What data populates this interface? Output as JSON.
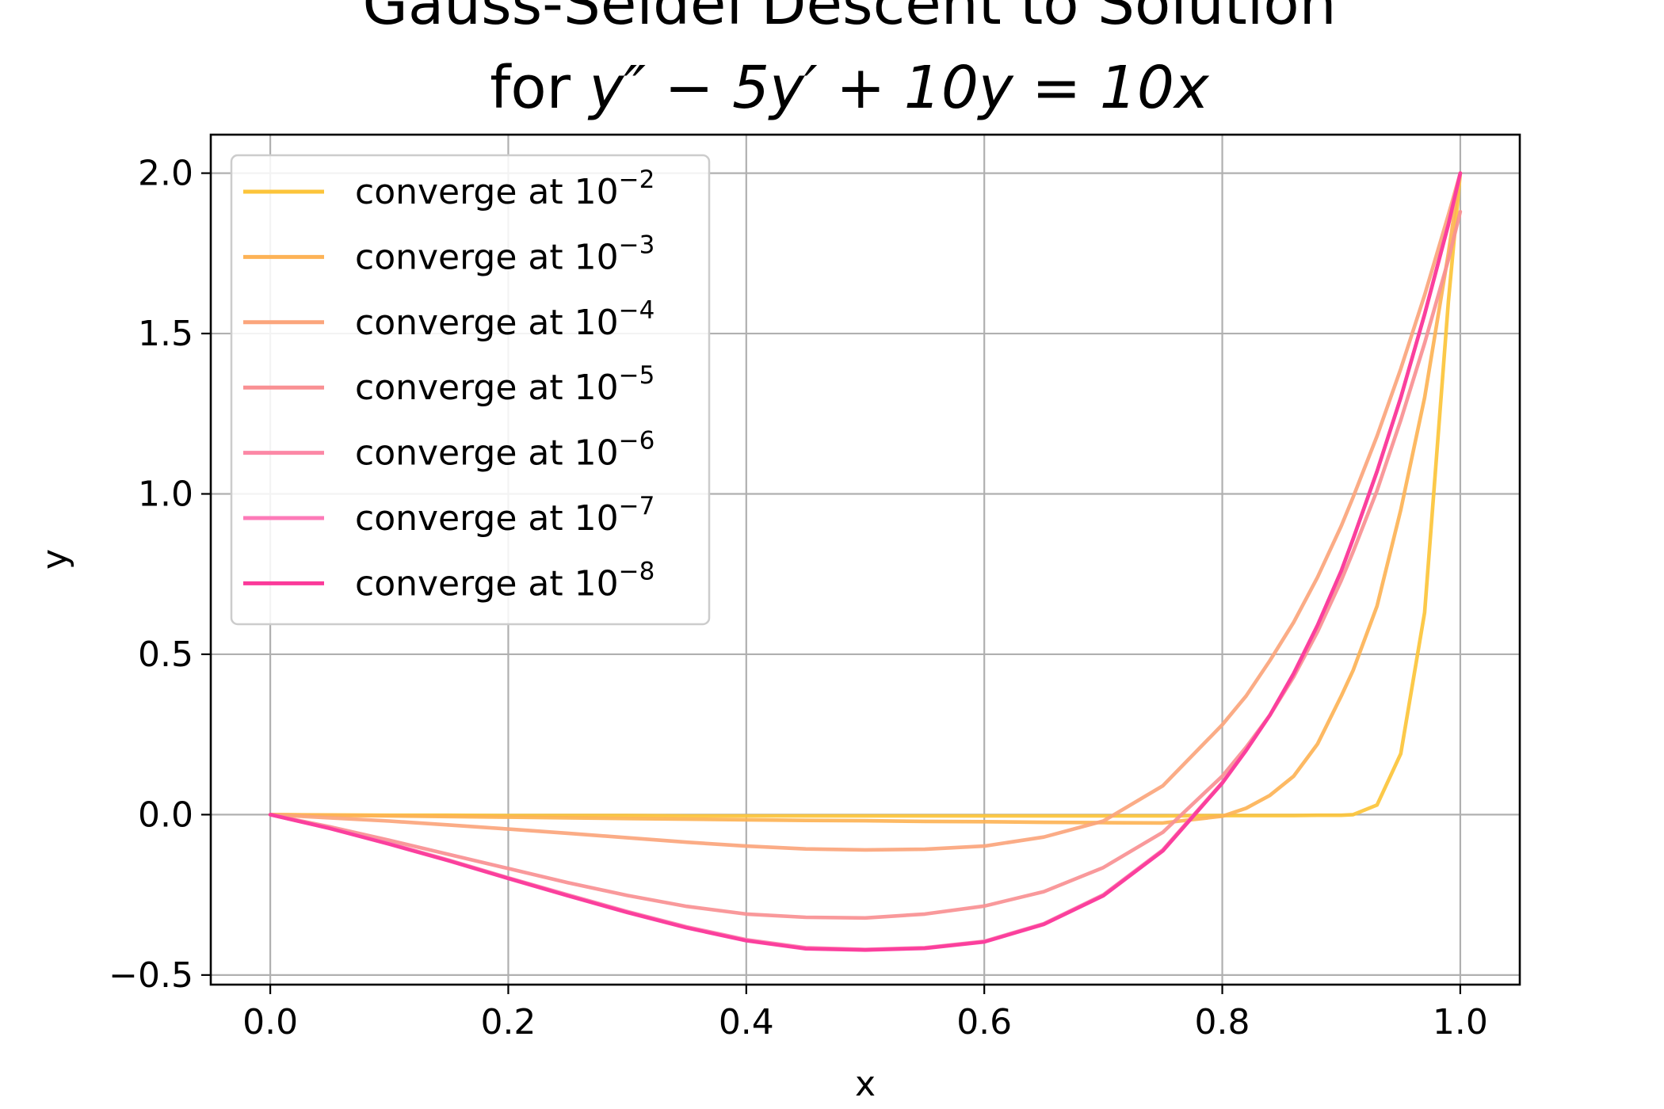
{
  "chart_data": {
    "type": "line",
    "title_line1": "Gauss-Seidel Descent to Solution",
    "title_line2_prefix": "for ",
    "title_line2_eq": "y″ − 5y′ + 10y = 10x",
    "xlabel": "x",
    "ylabel": "y",
    "xlim": [
      -0.05,
      1.05
    ],
    "ylim": [
      -0.53,
      2.12
    ],
    "xticks": [
      0.0,
      0.2,
      0.4,
      0.6,
      0.8,
      1.0
    ],
    "xtick_labels": [
      "0.0",
      "0.2",
      "0.4",
      "0.6",
      "0.8",
      "1.0"
    ],
    "yticks": [
      -0.5,
      0.0,
      0.5,
      1.0,
      1.5,
      2.0
    ],
    "ytick_labels": [
      "−0.5",
      "0.0",
      "0.5",
      "1.0",
      "1.5",
      "2.0"
    ],
    "grid": true,
    "legend_position": "upper-left",
    "x": [
      0.0,
      0.05,
      0.1,
      0.15,
      0.2,
      0.25,
      0.3,
      0.35,
      0.4,
      0.45,
      0.5,
      0.55,
      0.6,
      0.65,
      0.7,
      0.75,
      0.8,
      0.82,
      0.84,
      0.86,
      0.88,
      0.9,
      0.91,
      0.93,
      0.95,
      0.97,
      0.99,
      1.0
    ],
    "series": [
      {
        "name": "converge at 10",
        "exponent": "−2",
        "color": "#fcc43a",
        "values": [
          0.0,
          -0.001,
          -0.002,
          -0.002,
          -0.003,
          -0.003,
          -0.003,
          -0.004,
          -0.004,
          -0.004,
          -0.004,
          -0.004,
          -0.004,
          -0.004,
          -0.004,
          -0.004,
          -0.003,
          -0.003,
          -0.003,
          -0.003,
          -0.002,
          -0.002,
          0.0,
          0.03,
          0.19,
          0.63,
          1.6,
          2.0
        ]
      },
      {
        "name": "converge at 10",
        "exponent": "−3",
        "color": "#fdb356",
        "values": [
          0.0,
          -0.002,
          -0.004,
          -0.006,
          -0.008,
          -0.01,
          -0.012,
          -0.014,
          -0.016,
          -0.018,
          -0.019,
          -0.021,
          -0.022,
          -0.024,
          -0.025,
          -0.026,
          -0.005,
          0.02,
          0.06,
          0.12,
          0.22,
          0.37,
          0.45,
          0.65,
          0.95,
          1.3,
          1.75,
          2.0
        ]
      },
      {
        "name": "converge at 10",
        "exponent": "−4",
        "color": "#fba57c",
        "values": [
          0.0,
          -0.01,
          -0.02,
          -0.032,
          -0.045,
          -0.058,
          -0.072,
          -0.086,
          -0.098,
          -0.107,
          -0.11,
          -0.108,
          -0.098,
          -0.07,
          -0.02,
          0.09,
          0.28,
          0.37,
          0.48,
          0.6,
          0.74,
          0.9,
          0.99,
          1.18,
          1.39,
          1.62,
          1.87,
          2.0
        ]
      },
      {
        "name": "converge at 10",
        "exponent": "−5",
        "color": "#f99093",
        "values": [
          0.0,
          -0.038,
          -0.08,
          -0.124,
          -0.168,
          -0.212,
          -0.252,
          -0.286,
          -0.31,
          -0.32,
          -0.322,
          -0.31,
          -0.285,
          -0.24,
          -0.165,
          -0.055,
          0.12,
          0.21,
          0.31,
          0.43,
          0.57,
          0.73,
          0.82,
          1.01,
          1.23,
          1.47,
          1.73,
          1.88
        ]
      },
      {
        "name": "converge at 10",
        "exponent": "−6",
        "color": "#fc88a6",
        "values": [
          0.0,
          -0.042,
          -0.09,
          -0.142,
          -0.197,
          -0.25,
          -0.302,
          -0.35,
          -0.39,
          -0.415,
          -0.42,
          -0.415,
          -0.395,
          -0.34,
          -0.25,
          -0.11,
          0.1,
          0.2,
          0.31,
          0.44,
          0.59,
          0.76,
          0.86,
          1.07,
          1.3,
          1.56,
          1.84,
          2.0
        ]
      },
      {
        "name": "converge at 10",
        "exponent": "−7",
        "color": "#fd7ab8",
        "values": [
          0.0,
          -0.043,
          -0.091,
          -0.143,
          -0.198,
          -0.252,
          -0.304,
          -0.352,
          -0.392,
          -0.417,
          -0.421,
          -0.416,
          -0.396,
          -0.341,
          -0.252,
          -0.112,
          0.099,
          0.2,
          0.31,
          0.44,
          0.59,
          0.76,
          0.86,
          1.07,
          1.3,
          1.56,
          1.84,
          2.0
        ]
      },
      {
        "name": "converge at 10",
        "exponent": "−8",
        "color": "#fb3a9a",
        "values": [
          0.0,
          -0.043,
          -0.092,
          -0.144,
          -0.199,
          -0.253,
          -0.305,
          -0.353,
          -0.393,
          -0.418,
          -0.422,
          -0.417,
          -0.397,
          -0.342,
          -0.253,
          -0.113,
          0.098,
          0.2,
          0.31,
          0.44,
          0.59,
          0.76,
          0.86,
          1.07,
          1.3,
          1.56,
          1.84,
          2.0
        ]
      }
    ]
  }
}
